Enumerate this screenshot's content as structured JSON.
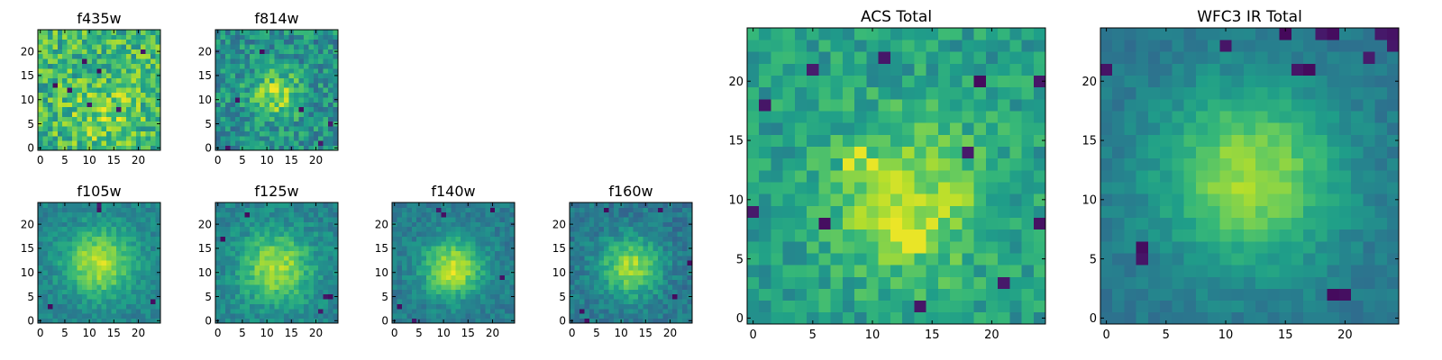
{
  "figure": {
    "panels": [
      "f435w",
      "f814w",
      "f105w",
      "f125w",
      "f140w",
      "f160w",
      "ACS Total",
      "WFC3 IR Total"
    ]
  },
  "chart_data": [
    {
      "type": "heatmap",
      "title": "f435w",
      "colormap": "viridis",
      "grid_size": 25,
      "xlim": [
        -0.5,
        24.5
      ],
      "ylim": [
        -0.5,
        24.5
      ],
      "origin": "lower",
      "xticks": [
        0,
        5,
        10,
        15,
        20
      ],
      "yticks": [
        0,
        5,
        10,
        15,
        20
      ],
      "center": [
        13,
        7
      ],
      "sigma": 5.0,
      "peak": 0.15,
      "base": 0.66,
      "noise": 0.22,
      "seed": 11,
      "dark_pixels": [
        [
          12,
          16
        ],
        [
          6,
          12
        ],
        [
          3,
          13
        ],
        [
          10,
          9
        ],
        [
          16,
          8
        ],
        [
          21,
          20
        ],
        [
          9,
          18
        ]
      ]
    },
    {
      "type": "heatmap",
      "title": "f814w",
      "colormap": "viridis",
      "grid_size": 25,
      "xlim": [
        -0.5,
        24.5
      ],
      "ylim": [
        -0.5,
        24.5
      ],
      "origin": "lower",
      "xticks": [
        0,
        5,
        10,
        15,
        20
      ],
      "yticks": [
        0,
        5,
        10,
        15,
        20
      ],
      "center": [
        12,
        11
      ],
      "sigma": 3.6,
      "peak": 0.35,
      "base": 0.5,
      "noise": 0.18,
      "seed": 22,
      "dark_pixels": [
        [
          2,
          0
        ],
        [
          17,
          8
        ],
        [
          21,
          1
        ],
        [
          9,
          20
        ],
        [
          4,
          10
        ],
        [
          23,
          5
        ]
      ]
    },
    {
      "type": "heatmap",
      "title": "f105w",
      "colormap": "viridis",
      "grid_size": 25,
      "xlim": [
        -0.5,
        24.5
      ],
      "ylim": [
        -0.5,
        24.5
      ],
      "origin": "lower",
      "xticks": [
        0,
        5,
        10,
        15,
        20
      ],
      "yticks": [
        0,
        5,
        10,
        15,
        20
      ],
      "center": [
        12,
        12
      ],
      "sigma": 4.8,
      "peak": 0.45,
      "base": 0.45,
      "noise": 0.09,
      "seed": 33,
      "dark_pixels": [
        [
          12,
          23
        ],
        [
          12,
          24
        ],
        [
          23,
          4
        ],
        [
          2,
          3
        ]
      ]
    },
    {
      "type": "heatmap",
      "title": "f125w",
      "colormap": "viridis",
      "grid_size": 25,
      "xlim": [
        -0.5,
        24.5
      ],
      "ylim": [
        -0.5,
        24.5
      ],
      "origin": "lower",
      "xticks": [
        0,
        5,
        10,
        15,
        20
      ],
      "yticks": [
        0,
        5,
        10,
        15,
        20
      ],
      "center": [
        12,
        11
      ],
      "sigma": 5.0,
      "peak": 0.42,
      "base": 0.45,
      "noise": 0.1,
      "seed": 44,
      "dark_pixels": [
        [
          23,
          5
        ],
        [
          22,
          5
        ],
        [
          21,
          2
        ],
        [
          1,
          17
        ],
        [
          6,
          22
        ]
      ]
    },
    {
      "type": "heatmap",
      "title": "f140w",
      "colormap": "viridis",
      "grid_size": 25,
      "xlim": [
        -0.5,
        24.5
      ],
      "ylim": [
        -0.5,
        24.5
      ],
      "origin": "lower",
      "xticks": [
        0,
        5,
        10,
        15,
        20
      ],
      "yticks": [
        0,
        5,
        10,
        15,
        20
      ],
      "center": [
        12,
        11
      ],
      "sigma": 4.2,
      "peak": 0.5,
      "base": 0.42,
      "noise": 0.09,
      "seed": 55,
      "dark_pixels": [
        [
          20,
          23
        ],
        [
          4,
          0
        ],
        [
          22,
          9
        ],
        [
          10,
          22
        ],
        [
          9,
          23
        ],
        [
          1,
          3
        ]
      ]
    },
    {
      "type": "heatmap",
      "title": "f160w",
      "colormap": "viridis",
      "grid_size": 25,
      "xlim": [
        -0.5,
        24.5
      ],
      "ylim": [
        -0.5,
        24.5
      ],
      "origin": "lower",
      "xticks": [
        0,
        5,
        10,
        15,
        20
      ],
      "yticks": [
        0,
        5,
        10,
        15,
        20
      ],
      "center": [
        12,
        11
      ],
      "sigma": 4.3,
      "peak": 0.45,
      "base": 0.4,
      "noise": 0.1,
      "seed": 66,
      "dark_pixels": [
        [
          3,
          0
        ],
        [
          2,
          2
        ],
        [
          7,
          23
        ],
        [
          18,
          23
        ],
        [
          24,
          12
        ],
        [
          21,
          5
        ]
      ]
    },
    {
      "type": "heatmap",
      "title": "ACS Total",
      "colormap": "viridis",
      "grid_size": 25,
      "xlim": [
        -0.5,
        24.5
      ],
      "ylim": [
        -0.5,
        24.5
      ],
      "origin": "lower",
      "xticks": [
        0,
        5,
        10,
        15,
        20
      ],
      "yticks": [
        0,
        5,
        10,
        15,
        20
      ],
      "center": [
        13,
        10
      ],
      "sigma": 4.5,
      "peak": 0.33,
      "base": 0.56,
      "noise": 0.13,
      "seed": 77,
      "dark_pixels": [
        [
          11,
          22
        ],
        [
          1,
          18
        ],
        [
          0,
          9
        ],
        [
          24,
          8
        ],
        [
          18,
          14
        ],
        [
          14,
          1
        ],
        [
          19,
          20
        ],
        [
          21,
          3
        ],
        [
          5,
          21
        ],
        [
          24,
          20
        ],
        [
          6,
          8
        ]
      ],
      "bright_pixels": [
        [
          13,
          7
        ],
        [
          14,
          7
        ],
        [
          13,
          6
        ],
        [
          14,
          6
        ],
        [
          12,
          7
        ],
        [
          10,
          13
        ],
        [
          9,
          14
        ],
        [
          8,
          13
        ]
      ]
    },
    {
      "type": "heatmap",
      "title": "WFC3 IR Total",
      "colormap": "viridis",
      "grid_size": 25,
      "xlim": [
        -0.5,
        24.5
      ],
      "ylim": [
        -0.5,
        24.5
      ],
      "origin": "lower",
      "xticks": [
        0,
        5,
        10,
        15,
        20
      ],
      "yticks": [
        0,
        5,
        10,
        15,
        20
      ],
      "center": [
        12,
        12
      ],
      "sigma": 5.2,
      "peak": 0.45,
      "base": 0.4,
      "noise": 0.06,
      "seed": 88,
      "dark_pixels": [
        [
          3,
          5
        ],
        [
          3,
          6
        ],
        [
          15,
          24
        ],
        [
          18,
          24
        ],
        [
          19,
          24
        ],
        [
          22,
          22
        ],
        [
          23,
          24
        ],
        [
          24,
          24
        ],
        [
          24,
          23
        ],
        [
          0,
          21
        ],
        [
          16,
          21
        ],
        [
          17,
          21
        ],
        [
          19,
          2
        ],
        [
          20,
          2
        ],
        [
          10,
          23
        ]
      ]
    }
  ]
}
